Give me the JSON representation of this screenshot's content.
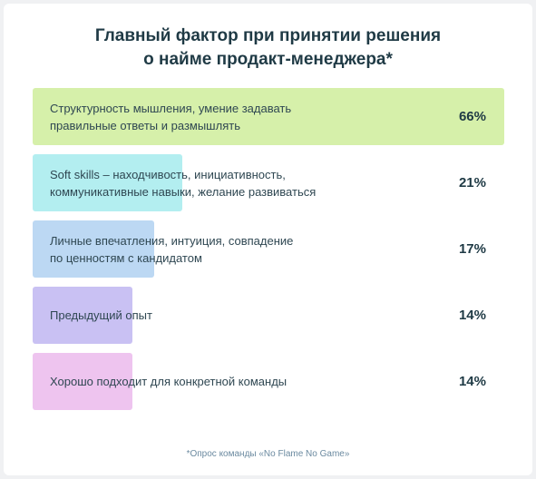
{
  "title_line1": "Главный фактор при принятии решения",
  "title_line2": "о найме продакт-менеджера*",
  "footnote": "*Опрос команды «No Flame No Game»",
  "colors": [
    "#d6f0aa",
    "#b3eef0",
    "#bcd8f3",
    "#c9c1f3",
    "#eec4ef"
  ],
  "chart_data": {
    "type": "bar",
    "orientation": "horizontal",
    "title": "Главный фактор при принятии решения о найме продакт-менеджера*",
    "xlim": [
      0,
      66
    ],
    "categories": [
      [
        "Структурность мышления, умение задавать",
        "правильные ответы и размышлять"
      ],
      [
        "Soft skills – находчивость, инициативность,",
        "коммуникативные навыки, желание развиваться"
      ],
      [
        "Личные впечатления, интуиция, совпадение",
        "по ценностям с кандидатом"
      ],
      [
        "Предыдущий опыт"
      ],
      [
        "Хорошо подходит для конкретной команды"
      ]
    ],
    "values": [
      66,
      21,
      17,
      14,
      14
    ],
    "value_labels": [
      "66%",
      "21%",
      "17%",
      "14%",
      "14%"
    ]
  }
}
